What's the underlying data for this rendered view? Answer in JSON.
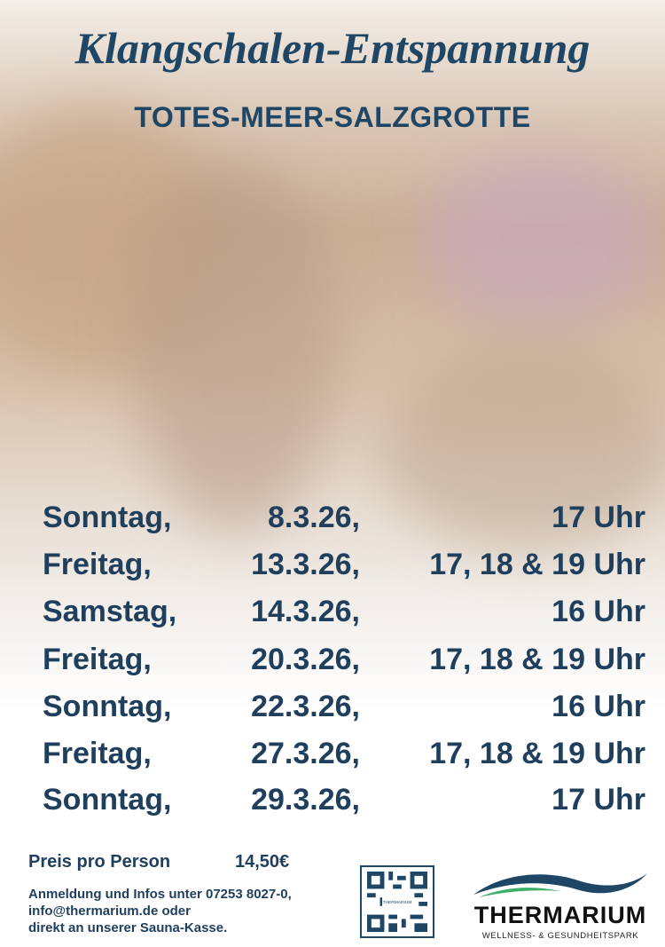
{
  "title": "Klangschalen-Entspannung",
  "subtitle": "TOTES-MEER-SALZGROTTE",
  "schedule": [
    {
      "day": "Sonntag,",
      "date": "8.3.26,",
      "time": "17 Uhr"
    },
    {
      "day": "Freitag,",
      "date": "13.3.26,",
      "time": "17, 18 & 19 Uhr"
    },
    {
      "day": "Samstag,",
      "date": "14.3.26,",
      "time": "16 Uhr"
    },
    {
      "day": "Freitag,",
      "date": "20.3.26,",
      "time": "17, 18 & 19 Uhr"
    },
    {
      "day": "Sonntag,",
      "date": "22.3.26,",
      "time": "16 Uhr"
    },
    {
      "day": "Freitag,",
      "date": "27.3.26,",
      "time": "17, 18 & 19 Uhr"
    },
    {
      "day": "Sonntag,",
      "date": "29.3.26,",
      "time": "17 Uhr"
    }
  ],
  "footer": {
    "price_label": "Preis pro Person",
    "price_value": "14,50€",
    "info_lines": [
      "Anmeldung und Infos unter 07253 8027-0,",
      "info@thermarium.de oder",
      "direkt an unserer Sauna-Kasse."
    ],
    "qr_label": "THERMARIUM"
  },
  "logo": {
    "name": "THERMARIUM",
    "tagline": "WELLNESS- & GESUNDHEITSPARK",
    "colors": {
      "wave_dark": "#1f4664",
      "wave_green": "#3fae6a"
    }
  },
  "colors": {
    "text": "#1f3f5d"
  }
}
